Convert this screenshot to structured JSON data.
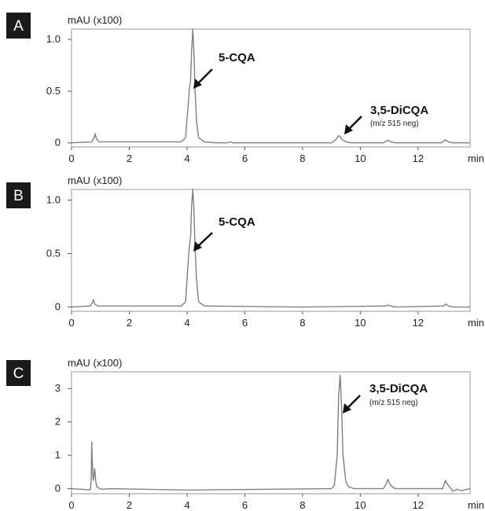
{
  "chart_data": [
    {
      "type": "line",
      "panel": "A",
      "ylabel": "mAU (x100)",
      "xlabel": "min",
      "xlim": [
        0,
        13.8
      ],
      "ylim": [
        -0.04,
        1.1
      ],
      "xticks": [
        "0",
        "2",
        "4",
        "6",
        "8",
        "10",
        "12"
      ],
      "yticks": [
        "0",
        "0.5",
        "1.0"
      ],
      "ytick_values": [
        0,
        0.5,
        1.0
      ],
      "grid": false,
      "line_color": "#808080",
      "series": [
        {
          "x": [
            0,
            0.7,
            0.78,
            0.82,
            0.86,
            0.95,
            1.2,
            3.8,
            3.95,
            4.02,
            4.08,
            4.12,
            4.16,
            4.2,
            4.24,
            4.28,
            4.33,
            4.4,
            4.6,
            5.0,
            5.4,
            5.5,
            5.6,
            7,
            9.0,
            9.15,
            9.25,
            9.3,
            9.38,
            9.5,
            9.7,
            10.8,
            10.9,
            10.95,
            11.05,
            11.2,
            12.8,
            12.9,
            12.95,
            13.05,
            13.2,
            13.8
          ],
          "y": [
            0,
            0.01,
            0.05,
            0.09,
            0.04,
            0.01,
            0.01,
            0.01,
            0.05,
            0.3,
            0.52,
            0.6,
            0.9,
            1.1,
            0.85,
            0.5,
            0.2,
            0.05,
            0.01,
            0.0,
            0.0,
            0.01,
            0.0,
            0.0,
            0.0,
            0.03,
            0.07,
            0.06,
            0.03,
            0.01,
            0.0,
            0.0,
            0.015,
            0.025,
            0.01,
            0.0,
            0.0,
            0.02,
            0.03,
            0.01,
            0.0,
            0.0
          ]
        }
      ],
      "annotations": [
        {
          "text": "5-CQA",
          "at": [
            4.3,
            0.52
          ]
        },
        {
          "text": "3,5-DiCQA",
          "subtext": "(m/z 515 neg)",
          "at": [
            9.65,
            0.08
          ]
        }
      ]
    },
    {
      "type": "line",
      "panel": "B",
      "ylabel": "mAU (x100)",
      "xlabel": "min",
      "xlim": [
        0,
        13.8
      ],
      "ylim": [
        -0.04,
        1.1
      ],
      "xticks": [
        "0",
        "2",
        "4",
        "6",
        "8",
        "10",
        "12"
      ],
      "yticks": [
        "0",
        "0.5",
        "1.0"
      ],
      "ytick_values": [
        0,
        0.5,
        1.0
      ],
      "grid": false,
      "line_color": "#808080",
      "series": [
        {
          "x": [
            0,
            0.65,
            0.72,
            0.76,
            0.8,
            0.9,
            1.2,
            3.8,
            3.95,
            4.02,
            4.08,
            4.12,
            4.16,
            4.2,
            4.24,
            4.28,
            4.33,
            4.4,
            4.6,
            8,
            10.9,
            10.95,
            11.05,
            11.2,
            12.9,
            12.95,
            13.05,
            13.2,
            13.8
          ],
          "y": [
            0,
            0.01,
            0.04,
            0.07,
            0.03,
            0.01,
            0.01,
            0.01,
            0.05,
            0.35,
            0.57,
            0.65,
            0.95,
            1.1,
            0.9,
            0.55,
            0.25,
            0.05,
            0.01,
            0.0,
            0.01,
            0.02,
            0.01,
            0.0,
            0.01,
            0.03,
            0.01,
            0.0,
            0.0
          ]
        }
      ],
      "annotations": [
        {
          "text": "5-CQA",
          "at": [
            4.3,
            0.52
          ]
        }
      ]
    },
    {
      "type": "line",
      "panel": "C",
      "ylabel": "mAU (x100)",
      "xlabel": "min",
      "xlim": [
        0,
        13.8
      ],
      "ylim": [
        -0.15,
        3.5
      ],
      "xticks": [
        "0",
        "2",
        "4",
        "6",
        "8",
        "10",
        "12"
      ],
      "yticks": [
        "0",
        "1",
        "2",
        "3"
      ],
      "ytick_values": [
        0,
        1,
        2,
        3
      ],
      "grid": false,
      "line_color": "#808080",
      "series": [
        {
          "x": [
            0,
            0.55,
            0.65,
            0.68,
            0.7,
            0.72,
            0.74,
            0.76,
            0.8,
            0.82,
            0.84,
            0.88,
            0.95,
            1.05,
            1.3,
            4,
            9.0,
            9.1,
            9.2,
            9.25,
            9.3,
            9.35,
            9.4,
            9.5,
            9.6,
            9.8,
            10.8,
            10.9,
            10.95,
            11.05,
            11.2,
            12.85,
            12.95,
            13.0,
            13.1,
            13.2,
            13.35,
            13.5,
            13.8
          ],
          "y": [
            0,
            -0.03,
            -0.03,
            0.2,
            1.4,
            0.8,
            0.35,
            0.25,
            0.6,
            0.45,
            0.2,
            0.05,
            0.02,
            -0.02,
            0.0,
            -0.04,
            0.0,
            0.1,
            1.0,
            2.8,
            3.4,
            2.5,
            1.0,
            0.2,
            0.05,
            0.0,
            0.0,
            0.15,
            0.28,
            0.1,
            0.0,
            0.0,
            0.25,
            0.15,
            0.05,
            -0.08,
            -0.02,
            -0.06,
            0.0
          ]
        }
      ],
      "annotations": [
        {
          "text": "3,5-DiCQA",
          "subtext": "(m/z 515 neg)",
          "at": [
            9.35,
            2.75
          ]
        }
      ]
    }
  ]
}
